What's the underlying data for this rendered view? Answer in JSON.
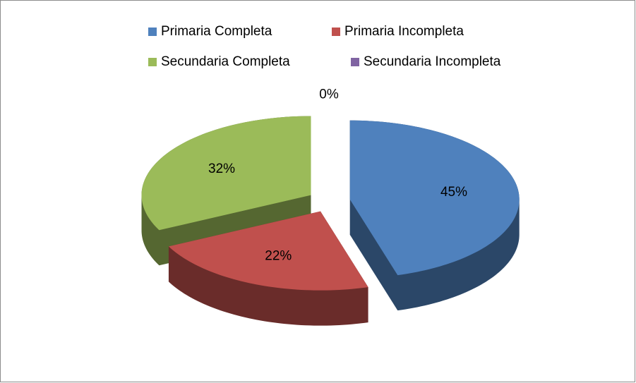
{
  "chart_data": {
    "type": "pie",
    "categories": [
      "Primaria Completa",
      "Primaria Incompleta",
      "Secundaria Completa",
      "Secundaria Incompleta"
    ],
    "values": [
      45,
      22,
      32,
      0
    ],
    "value_labels": [
      "45%",
      "22%",
      "32%",
      "0%"
    ],
    "colors": [
      "#4f81bd",
      "#c0504d",
      "#9bbb59",
      "#8064a2"
    ],
    "legend": "top"
  }
}
